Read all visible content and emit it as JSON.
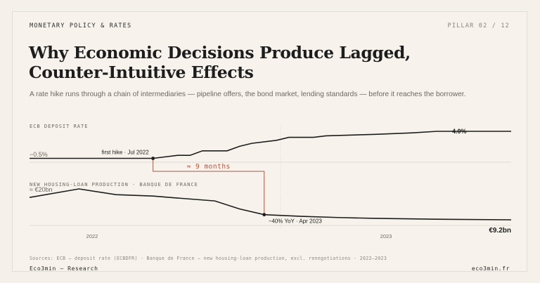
{
  "header": {
    "eyebrow": "MONETARY POLICY & RATES",
    "pillar": "PILLAR 02 / 12",
    "title": "Why Economic Decisions Produce Lagged, Counter-Intuitive Effects",
    "subtitle": "A rate hike runs through a chain of intermediaries — pipeline offers, the bond market, lending standards — before it reaches the borrower."
  },
  "colors": {
    "accent": "#b5523b",
    "ink": "#1d1d1d",
    "muted": "#8a857d",
    "grid": "#d9d4cb"
  },
  "chart_data": [
    {
      "type": "line",
      "title": "ECB DEPOSIT RATE",
      "x": [
        "2021-09",
        "2022-01",
        "2022-04",
        "2022-07",
        "2022-09",
        "2022-10",
        "2022-11",
        "2023-01",
        "2023-02",
        "2023-03",
        "2023-05",
        "2023-06",
        "2023-08",
        "2023-09",
        "2024-01",
        "2024-04",
        "2024-06",
        "2024-12"
      ],
      "y": [
        -0.5,
        -0.5,
        -0.5,
        -0.5,
        0.0,
        0.0,
        0.75,
        0.75,
        1.5,
        2.0,
        2.5,
        3.0,
        3.0,
        3.25,
        3.5,
        3.75,
        4.0,
        4.0
      ],
      "labels": {
        "start": "−0.5%",
        "end": "4.0%",
        "event": "first hike · Jul 2022"
      }
    },
    {
      "type": "line",
      "title": "NEW HOUSING-LOAN PRODUCTION · BANQUE DE FRANCE",
      "x": [
        "2021-09",
        "2022-01",
        "2022-04",
        "2022-07",
        "2022-09",
        "2022-12",
        "2023-02",
        "2023-04",
        "2023-07",
        "2023-10",
        "2024-01",
        "2024-06",
        "2024-12"
      ],
      "y": [
        17.0,
        20.0,
        18.0,
        17.5,
        16.8,
        15.8,
        13.0,
        11.0,
        10.4,
        10.0,
        9.7,
        9.4,
        9.2
      ],
      "labels": {
        "start": "≈ €20bn",
        "end": "€9.2bn",
        "event": "−40% YoY · Apr 2023"
      }
    }
  ],
  "lag_label": "≈ 9 months",
  "x_ticks": [
    "2022",
    "2023"
  ],
  "footer": {
    "sources": "Sources: ECB — deposit rate (ECBDFR) · Banque de France — new housing-loan production, excl. renegotiations · 2022–2023",
    "brand": "Eco3min — Research",
    "site": "eco3min.fr"
  }
}
